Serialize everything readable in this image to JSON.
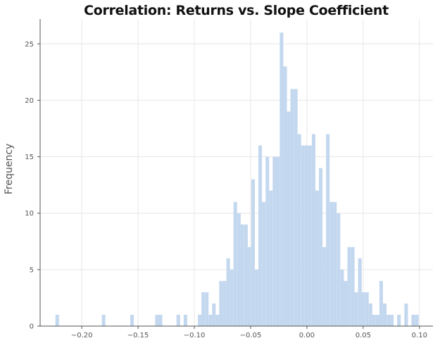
{
  "chart_data": {
    "type": "bar",
    "subtype": "histogram",
    "title": "Correlation: Returns vs. Slope Coefficient",
    "xlabel": "",
    "ylabel": "Frequency",
    "xlim": [
      -0.237,
      0.112
    ],
    "ylim": [
      0,
      27.2
    ],
    "grid": true,
    "bar_color": "#c3d8ef",
    "bin_width": 0.00316,
    "x_ticks": [
      -0.2,
      -0.15,
      -0.1,
      -0.05,
      0.0,
      0.05,
      0.1
    ],
    "x_tick_labels": [
      "−0.20",
      "−0.15",
      "−0.10",
      "−0.05",
      "0.00",
      "0.05",
      "0.10"
    ],
    "y_ticks": [
      0,
      5,
      10,
      15,
      20,
      25
    ],
    "y_tick_labels": [
      "0",
      "5",
      "10",
      "15",
      "20",
      "25"
    ],
    "bins": [
      {
        "x": -0.2234,
        "count": 1
      },
      {
        "x": -0.1822,
        "count": 1
      },
      {
        "x": -0.1569,
        "count": 1
      },
      {
        "x": -0.1348,
        "count": 1
      },
      {
        "x": -0.1316,
        "count": 1
      },
      {
        "x": -0.1158,
        "count": 1
      },
      {
        "x": -0.1095,
        "count": 1
      },
      {
        "x": -0.0968,
        "count": 1
      },
      {
        "x": -0.0937,
        "count": 3
      },
      {
        "x": -0.0905,
        "count": 3
      },
      {
        "x": -0.0873,
        "count": 1
      },
      {
        "x": -0.0842,
        "count": 2
      },
      {
        "x": -0.081,
        "count": 1
      },
      {
        "x": -0.0779,
        "count": 4
      },
      {
        "x": -0.0747,
        "count": 4
      },
      {
        "x": -0.0715,
        "count": 6
      },
      {
        "x": -0.0684,
        "count": 5
      },
      {
        "x": -0.0652,
        "count": 11
      },
      {
        "x": -0.062,
        "count": 10
      },
      {
        "x": -0.0589,
        "count": 9
      },
      {
        "x": -0.0557,
        "count": 9
      },
      {
        "x": -0.0526,
        "count": 7
      },
      {
        "x": -0.0494,
        "count": 13
      },
      {
        "x": -0.0462,
        "count": 5
      },
      {
        "x": -0.0431,
        "count": 16
      },
      {
        "x": -0.0399,
        "count": 11
      },
      {
        "x": -0.0367,
        "count": 15
      },
      {
        "x": -0.0336,
        "count": 12
      },
      {
        "x": -0.0304,
        "count": 15
      },
      {
        "x": -0.0273,
        "count": 15
      },
      {
        "x": -0.0241,
        "count": 26
      },
      {
        "x": -0.0209,
        "count": 23
      },
      {
        "x": -0.0178,
        "count": 19
      },
      {
        "x": -0.0146,
        "count": 21
      },
      {
        "x": -0.0114,
        "count": 21
      },
      {
        "x": -0.0083,
        "count": 17
      },
      {
        "x": -0.0051,
        "count": 16
      },
      {
        "x": -0.0019,
        "count": 16
      },
      {
        "x": 0.0012,
        "count": 16
      },
      {
        "x": 0.0044,
        "count": 17
      },
      {
        "x": 0.0075,
        "count": 12
      },
      {
        "x": 0.0107,
        "count": 14
      },
      {
        "x": 0.0139,
        "count": 7
      },
      {
        "x": 0.017,
        "count": 17
      },
      {
        "x": 0.0202,
        "count": 11
      },
      {
        "x": 0.0233,
        "count": 11
      },
      {
        "x": 0.0265,
        "count": 10
      },
      {
        "x": 0.0297,
        "count": 5
      },
      {
        "x": 0.0328,
        "count": 4
      },
      {
        "x": 0.036,
        "count": 7
      },
      {
        "x": 0.0392,
        "count": 7
      },
      {
        "x": 0.0423,
        "count": 3
      },
      {
        "x": 0.0455,
        "count": 6
      },
      {
        "x": 0.0486,
        "count": 3
      },
      {
        "x": 0.0518,
        "count": 3
      },
      {
        "x": 0.055,
        "count": 2
      },
      {
        "x": 0.0581,
        "count": 1
      },
      {
        "x": 0.0613,
        "count": 1
      },
      {
        "x": 0.0644,
        "count": 4
      },
      {
        "x": 0.0676,
        "count": 2
      },
      {
        "x": 0.0708,
        "count": 1
      },
      {
        "x": 0.0739,
        "count": 1
      },
      {
        "x": 0.0802,
        "count": 1
      },
      {
        "x": 0.0866,
        "count": 2
      },
      {
        "x": 0.0929,
        "count": 1
      },
      {
        "x": 0.0961,
        "count": 1
      }
    ]
  }
}
